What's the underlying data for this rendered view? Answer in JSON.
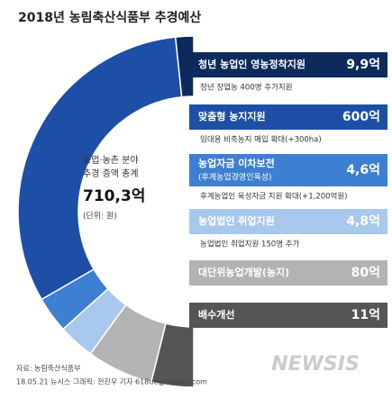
{
  "header": {
    "title": "2018년 농림축산식품부 추경예산"
  },
  "total": {
    "line1": "농업·농촌 분야",
    "line2": "추경 증액 총계",
    "value": "710,3억",
    "unit": "(단위: 원)"
  },
  "items": [
    {
      "title": "청년 농업인 영농정착지원",
      "amount": "9,9억",
      "note": "청년 창업농 400명 추가지원"
    },
    {
      "title": "맞춤형 농지지원",
      "amount": "600억",
      "note": "임대용 비축농지 매입 확대(+300ha)"
    },
    {
      "title": "농업자금 이차보전",
      "subtitle": "(후계농업경영인육성)",
      "amount": "4,6억",
      "note": "후계농업인 육성자금 지원 확대(+1,200억원)"
    },
    {
      "title": "농업법인 취업지원",
      "amount": "4,8억",
      "note": "농업법인 취업지원 150명 추가"
    },
    {
      "title": "대단위농업개발(농지)",
      "amount": "80억"
    },
    {
      "title": "배수개선",
      "amount": "11억"
    }
  ],
  "footer": {
    "source": "자료: 농림축산식품부",
    "credit": "18.05.21 뉴시스 그래픽: 전진우 기자 618ue@newsis.com",
    "watermark": "NEWSIS"
  }
}
